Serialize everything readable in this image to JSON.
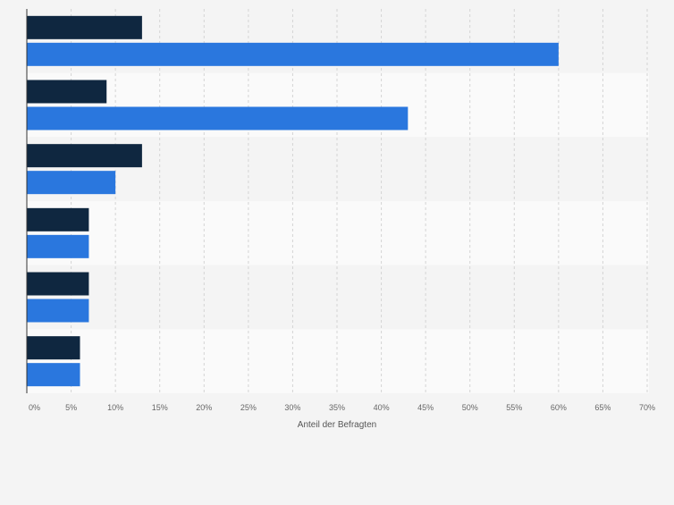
{
  "chart_data": {
    "type": "bar",
    "orientation": "horizontal",
    "categories": [
      "",
      "",
      "",
      "",
      "",
      ""
    ],
    "series": [
      {
        "name": "",
        "color": "#0f2740",
        "values": [
          13,
          9,
          13,
          7,
          7,
          6
        ]
      },
      {
        "name": "",
        "color": "#2a77de",
        "values": [
          60,
          43,
          10,
          7,
          7,
          6
        ]
      }
    ],
    "xlabel": "Anteil der Befragten",
    "ylabel": "",
    "xlim": [
      0,
      70
    ],
    "xticks": [
      0,
      5,
      10,
      15,
      20,
      25,
      30,
      35,
      40,
      45,
      50,
      55,
      60,
      65,
      70
    ],
    "xtick_labels": [
      "0%",
      "5%",
      "10%",
      "15%",
      "20%",
      "25%",
      "30%",
      "35%",
      "40%",
      "45%",
      "50%",
      "55%",
      "60%",
      "65%",
      "70%"
    ],
    "grid": true,
    "colors": {
      "band_odd": "#f4f4f4",
      "band_even": "#fafafa",
      "grid": "#d4d4d4",
      "axis": "#333333",
      "tick_text": "#666666"
    }
  }
}
